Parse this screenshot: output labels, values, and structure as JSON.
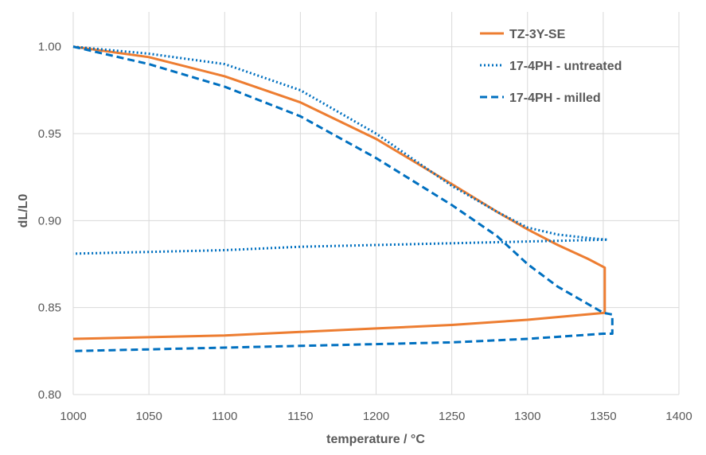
{
  "chart_data": {
    "type": "line",
    "title": "",
    "xlabel": "temperature / °C",
    "ylabel": "dL/L0",
    "xlim": [
      1000,
      1400
    ],
    "ylim": [
      0.8,
      1.02
    ],
    "x_ticks": [
      "1000",
      "1050",
      "1100",
      "1150",
      "1200",
      "1250",
      "1300",
      "1350",
      "1400"
    ],
    "y_ticks": [
      "0.80",
      "0.85",
      "0.90",
      "0.95",
      "1.00"
    ],
    "grid": true,
    "legend_position": "top-right",
    "series": [
      {
        "name": "TZ-3Y-SE",
        "color": "#ED7D31",
        "style": "solid",
        "points": [
          [
            1000,
            1.0
          ],
          [
            1050,
            0.994
          ],
          [
            1100,
            0.983
          ],
          [
            1150,
            0.968
          ],
          [
            1200,
            0.947
          ],
          [
            1250,
            0.921
          ],
          [
            1280,
            0.905
          ],
          [
            1300,
            0.895
          ],
          [
            1320,
            0.886
          ],
          [
            1340,
            0.878
          ],
          [
            1351,
            0.873
          ],
          [
            1351,
            0.847
          ],
          [
            1300,
            0.843
          ],
          [
            1250,
            0.84
          ],
          [
            1200,
            0.838
          ],
          [
            1150,
            0.836
          ],
          [
            1100,
            0.834
          ],
          [
            1050,
            0.833
          ],
          [
            1000,
            0.832
          ]
        ]
      },
      {
        "name": "17-4PH - untreated",
        "color": "#0070C0",
        "style": "dotted",
        "points": [
          [
            1000,
            1.0
          ],
          [
            1050,
            0.996
          ],
          [
            1100,
            0.99
          ],
          [
            1150,
            0.975
          ],
          [
            1200,
            0.95
          ],
          [
            1250,
            0.92
          ],
          [
            1280,
            0.905
          ],
          [
            1300,
            0.896
          ],
          [
            1320,
            0.892
          ],
          [
            1340,
            0.89
          ],
          [
            1353,
            0.889
          ],
          [
            1350,
            0.889
          ],
          [
            1300,
            0.888
          ],
          [
            1250,
            0.887
          ],
          [
            1200,
            0.886
          ],
          [
            1150,
            0.885
          ],
          [
            1100,
            0.883
          ],
          [
            1050,
            0.882
          ],
          [
            1000,
            0.881
          ]
        ]
      },
      {
        "name": "17-4PH - milled",
        "color": "#0070C0",
        "style": "dashed",
        "points": [
          [
            1000,
            1.0
          ],
          [
            1050,
            0.99
          ],
          [
            1100,
            0.977
          ],
          [
            1150,
            0.96
          ],
          [
            1200,
            0.936
          ],
          [
            1250,
            0.909
          ],
          [
            1280,
            0.891
          ],
          [
            1300,
            0.875
          ],
          [
            1320,
            0.862
          ],
          [
            1340,
            0.852
          ],
          [
            1350,
            0.847
          ],
          [
            1356,
            0.846
          ],
          [
            1356,
            0.835
          ],
          [
            1350,
            0.835
          ],
          [
            1300,
            0.832
          ],
          [
            1250,
            0.83
          ],
          [
            1200,
            0.829
          ],
          [
            1150,
            0.828
          ],
          [
            1100,
            0.827
          ],
          [
            1050,
            0.826
          ],
          [
            1000,
            0.825
          ]
        ]
      }
    ]
  }
}
